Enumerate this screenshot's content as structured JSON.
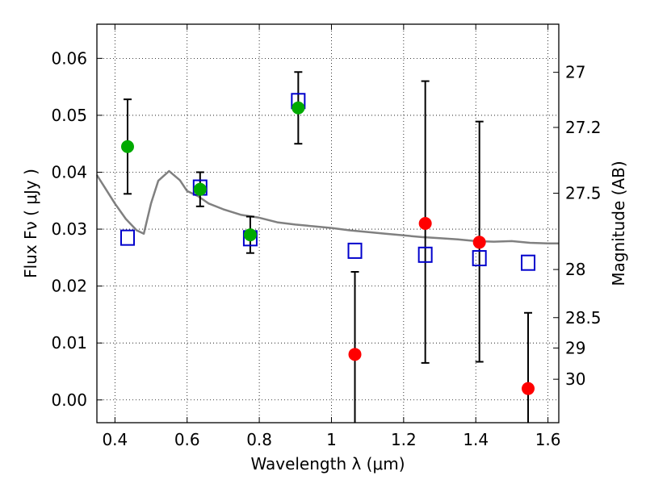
{
  "chart_data": {
    "type": "scatter",
    "xlabel": "Wavelength  λ (μm)",
    "ylabel": "Flux  Fν  ( μJy )",
    "y2label": "Magnitude (AB)",
    "xlim": [
      0.35,
      1.63
    ],
    "ylim": [
      -0.004,
      0.066
    ],
    "x_ticks": [
      0.4,
      0.6,
      0.8,
      1.0,
      1.2,
      1.4,
      1.6
    ],
    "x_tick_labels": [
      "0.4",
      "0.6",
      "0.8",
      "1",
      "1.2",
      "1.4",
      "1.6"
    ],
    "y_ticks": [
      0.0,
      0.01,
      0.02,
      0.03,
      0.04,
      0.05,
      0.06
    ],
    "y_tick_labels": [
      "0.00",
      "0.01",
      "0.02",
      "0.03",
      "0.04",
      "0.05",
      "0.06"
    ],
    "mag_ticks": [
      "27",
      "27.2",
      "27.5",
      "28",
      "28.5",
      "29",
      "30"
    ],
    "grid": true,
    "colors": {
      "detections": "#00aa00",
      "upper_limits": "#ff0000",
      "model_photometry": "#0000cc",
      "model_spectrum": "#808080",
      "errorbar": "#000000"
    },
    "series": [
      {
        "marker": "circle",
        "x": [
          0.435,
          0.636,
          0.775,
          0.908
        ],
        "y": [
          0.0445,
          0.037,
          0.029,
          0.0513
        ],
        "yerr": [
          0.0083,
          0.003,
          0.0032,
          0.0063
        ]
      },
      {
        "marker": "circle",
        "x": [
          1.065,
          1.26,
          1.41,
          1.545
        ],
        "y": [
          0.008,
          0.031,
          0.0277,
          0.002
        ],
        "yerr_low": [
          0.0145,
          0.0245,
          0.021,
          0.0085
        ],
        "yerr_high": [
          0.0145,
          0.025,
          0.0212,
          0.0133
        ]
      },
      {
        "marker": "open-square",
        "x": [
          0.435,
          0.636,
          0.775,
          0.908,
          1.065,
          1.26,
          1.41,
          1.545
        ],
        "y": [
          0.0285,
          0.0373,
          0.0284,
          0.0525,
          0.0262,
          0.0255,
          0.0249,
          0.0241
        ]
      },
      {
        "marker": "line",
        "x": [
          0.35,
          0.37,
          0.4,
          0.43,
          0.46,
          0.48,
          0.5,
          0.52,
          0.55,
          0.58,
          0.6,
          0.63,
          0.66,
          0.7,
          0.75,
          0.8,
          0.85,
          0.9,
          0.95,
          1.0,
          1.05,
          1.1,
          1.15,
          1.2,
          1.25,
          1.3,
          1.35,
          1.4,
          1.45,
          1.5,
          1.55,
          1.6,
          1.63
        ],
        "y": [
          0.0395,
          0.0375,
          0.0345,
          0.0318,
          0.0298,
          0.0292,
          0.0345,
          0.0385,
          0.0402,
          0.0386,
          0.0367,
          0.0358,
          0.0345,
          0.0335,
          0.0325,
          0.032,
          0.0312,
          0.0308,
          0.0305,
          0.0302,
          0.0298,
          0.0295,
          0.0292,
          0.0289,
          0.0286,
          0.0284,
          0.0282,
          0.0279,
          0.0278,
          0.0279,
          0.0276,
          0.0275,
          0.0275
        ]
      }
    ]
  }
}
